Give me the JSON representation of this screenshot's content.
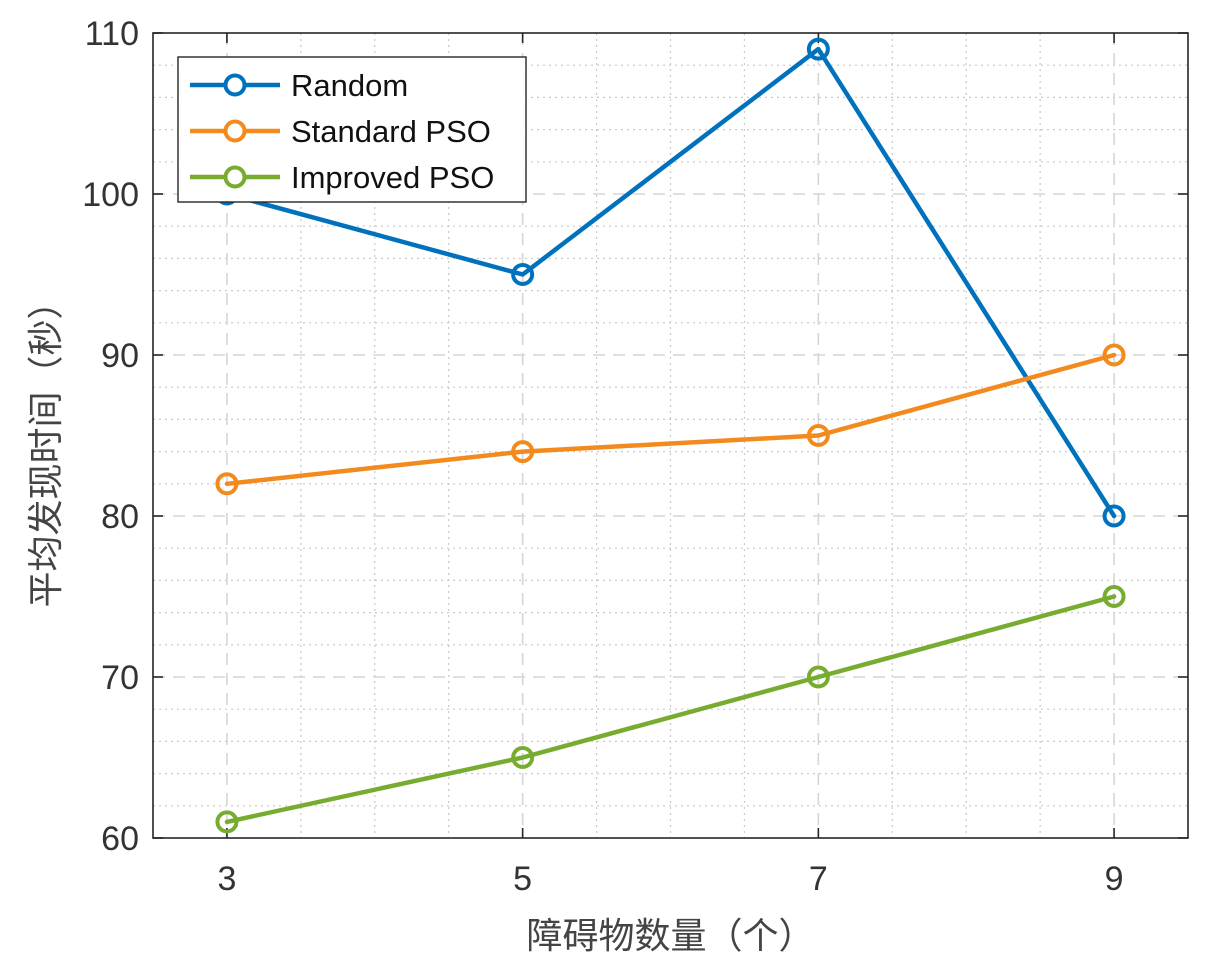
{
  "chart_data": {
    "type": "line",
    "title": "",
    "xlabel": "障碍物数量（个）",
    "ylabel": "平均发现时间（秒）",
    "x": [
      3,
      5,
      7,
      9
    ],
    "xlim": [
      2.5,
      9.5
    ],
    "ylim": [
      60,
      110
    ],
    "xticks": [
      3,
      5,
      7,
      9
    ],
    "yticks": [
      60,
      70,
      80,
      90,
      100,
      110
    ],
    "grid": true,
    "minor_grid": true,
    "legend_position": "top-left",
    "series": [
      {
        "name": "Random",
        "color": "#0072BD",
        "marker": "circle",
        "values": [
          100,
          95,
          109,
          80
        ]
      },
      {
        "name": "Standard PSO",
        "color": "#F28A1E",
        "marker": "circle",
        "values": [
          82,
          84,
          85,
          90
        ]
      },
      {
        "name": "Improved PSO",
        "color": "#77AC30",
        "marker": "circle",
        "values": [
          61,
          65,
          70,
          75
        ]
      }
    ]
  }
}
